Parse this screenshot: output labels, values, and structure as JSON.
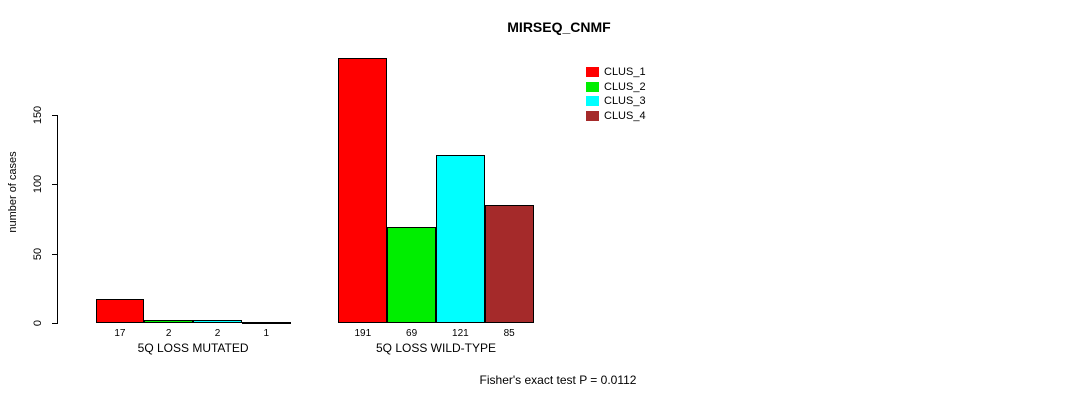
{
  "title": "MIRSEQ_CNMF",
  "footer": "Fisher's exact test P = 0.0112",
  "chart_data": {
    "type": "bar",
    "title": "MIRSEQ_CNMF",
    "xlabel": "",
    "ylabel": "number of cases",
    "categories": [
      "5Q LOSS MUTATED",
      "5Q LOSS WILD-TYPE"
    ],
    "series": [
      {
        "name": "CLUS_1",
        "color": "#ff0000",
        "values": [
          17,
          191
        ]
      },
      {
        "name": "CLUS_2",
        "color": "#00ee00",
        "values": [
          2,
          69
        ]
      },
      {
        "name": "CLUS_3",
        "color": "#00ffff",
        "values": [
          2,
          121
        ]
      },
      {
        "name": "CLUS_4",
        "color": "#a52a2a",
        "values": [
          1,
          85
        ]
      }
    ],
    "bar_value_labels": {
      "5Q LOSS MUTATED": [
        17,
        2,
        2,
        1
      ],
      "5Q LOSS WILD-TYPE": [
        191,
        69,
        121,
        85
      ]
    },
    "yticks": [
      0,
      50,
      100,
      150
    ],
    "axis_range": [
      0,
      150
    ],
    "grid": false,
    "legend_position": "top-right",
    "legend_entries": [
      "CLUS_1",
      "CLUS_2",
      "CLUS_3",
      "CLUS_4"
    ],
    "bar_border_color": "#000000"
  }
}
